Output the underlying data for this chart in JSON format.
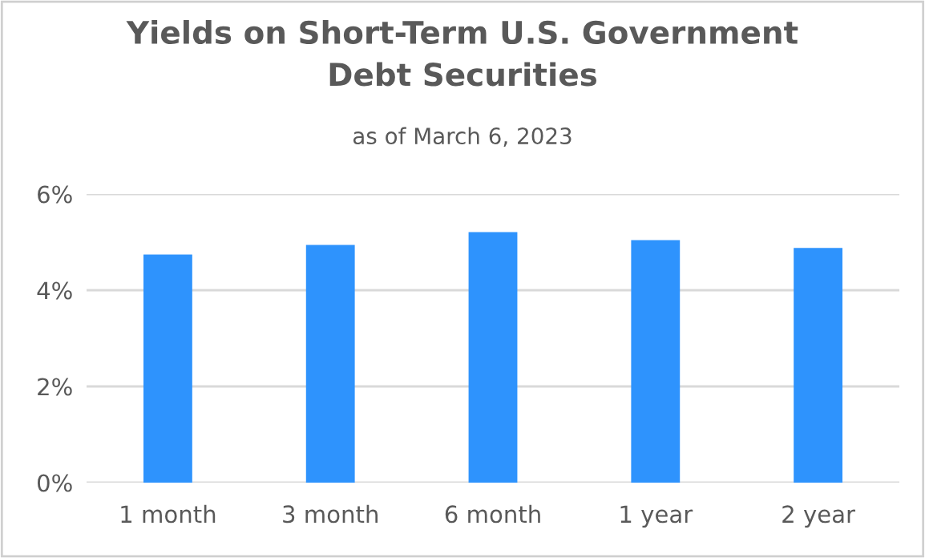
{
  "chart_data": {
    "type": "bar",
    "title": "Yields on Short-Term U.S. Government\nDebt Securities",
    "subtitle": "as of March 6, 2023",
    "categories": [
      "1 month",
      "3 month",
      "6 month",
      "1 year",
      "2 year"
    ],
    "values": [
      4.74,
      4.94,
      5.21,
      5.04,
      4.88
    ],
    "color": "#2e93fd",
    "ylim": [
      0,
      6
    ],
    "yticks": [
      {
        "value": 0,
        "label": "0%"
      },
      {
        "value": 2,
        "label": "2%"
      },
      {
        "value": 4,
        "label": "4%"
      },
      {
        "value": 6,
        "label": "6%"
      }
    ],
    "grid": "y"
  }
}
